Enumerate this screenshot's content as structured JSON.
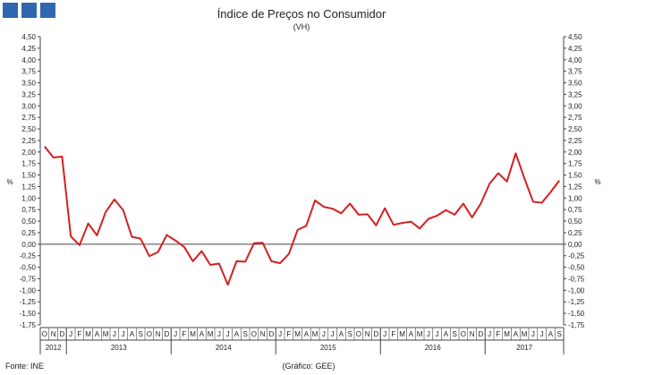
{
  "header": {
    "title": "Índice de Preços no Consumidor",
    "subtitle": "(VH)"
  },
  "footer": {
    "source": "Fonte: INE",
    "credit": "(Gráfico: GEE)"
  },
  "colors": {
    "line": "#d42020",
    "logo": "#2f68b0",
    "axis": "#444444"
  },
  "chart_data": {
    "type": "line",
    "title": "Índice de Preços no Consumidor",
    "subtitle": "(VH)",
    "ylabel_left": "%",
    "ylabel_right": "%",
    "ylim": [
      -1.75,
      4.5
    ],
    "y_step": 0.25,
    "y_ticks": [
      "4,50",
      "4,25",
      "4,00",
      "3,75",
      "3,50",
      "3,25",
      "3,00",
      "2,75",
      "2,50",
      "2,25",
      "2,00",
      "1,75",
      "1,50",
      "1,25",
      "1,00",
      "0,75",
      "0,50",
      "0,25",
      "0,00",
      "-0,25",
      "-0,50",
      "-0,75",
      "-1,00",
      "-1,25",
      "-1,50",
      "-1,75"
    ],
    "grid": false,
    "months": [
      "O",
      "N",
      "D",
      "J",
      "F",
      "M",
      "A",
      "M",
      "J",
      "J",
      "A",
      "S",
      "O",
      "N",
      "D",
      "J",
      "F",
      "M",
      "A",
      "M",
      "J",
      "J",
      "A",
      "S",
      "O",
      "N",
      "D",
      "J",
      "F",
      "M",
      "A",
      "M",
      "J",
      "J",
      "A",
      "S",
      "O",
      "N",
      "D",
      "J",
      "F",
      "M",
      "A",
      "M",
      "J",
      "J",
      "A",
      "S",
      "O",
      "N",
      "D",
      "J",
      "F",
      "M",
      "A",
      "M",
      "J",
      "J",
      "A",
      "S"
    ],
    "years": [
      {
        "label": "2012",
        "start": 0,
        "end": 2
      },
      {
        "label": "2013",
        "start": 3,
        "end": 14
      },
      {
        "label": "2014",
        "start": 15,
        "end": 26
      },
      {
        "label": "2015",
        "start": 27,
        "end": 38
      },
      {
        "label": "2016",
        "start": 39,
        "end": 50
      },
      {
        "label": "2017",
        "start": 51,
        "end": 59
      }
    ],
    "series": [
      {
        "values": [
          2.12,
          1.88,
          1.9,
          0.17,
          -0.02,
          0.45,
          0.19,
          0.7,
          0.97,
          0.74,
          0.16,
          0.12,
          -0.26,
          -0.17,
          0.2,
          0.08,
          -0.06,
          -0.37,
          -0.15,
          -0.45,
          -0.42,
          -0.88,
          -0.37,
          -0.38,
          0.02,
          0.03,
          -0.37,
          -0.41,
          -0.21,
          0.31,
          0.4,
          0.95,
          0.81,
          0.77,
          0.67,
          0.88,
          0.64,
          0.65,
          0.41,
          0.78,
          0.42,
          0.46,
          0.49,
          0.34,
          0.55,
          0.62,
          0.74,
          0.64,
          0.88,
          0.58,
          0.88,
          1.31,
          1.54,
          1.36,
          1.97,
          1.43,
          0.92,
          0.9,
          1.13,
          1.38
        ]
      }
    ]
  }
}
